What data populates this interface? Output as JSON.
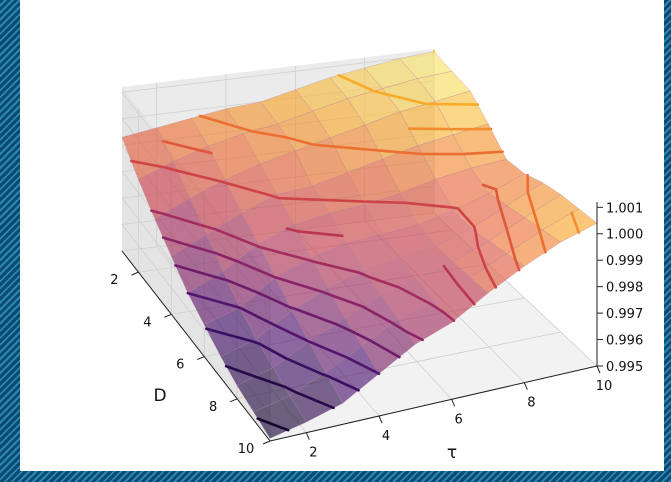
{
  "chart_data": {
    "type": "surface3d",
    "title": "",
    "xlabel": "τ",
    "ylabel": "D",
    "zlabel": "",
    "x_ticks": [
      "2",
      "4",
      "6",
      "8",
      "10"
    ],
    "y_ticks": [
      "2",
      "4",
      "6",
      "8",
      "10"
    ],
    "z_ticks": [
      "0.995",
      "0.996",
      "0.997",
      "0.998",
      "0.999",
      "1.000",
      "1.001"
    ],
    "xlim": [
      1,
      10
    ],
    "ylim": [
      1,
      10
    ],
    "zlim": [
      0.995,
      1.0012
    ],
    "colormap": "inferno",
    "grid": true,
    "tau": [
      1,
      2,
      3,
      4,
      5,
      6,
      7,
      8,
      9,
      10
    ],
    "D": [
      1,
      2,
      3,
      4,
      5,
      6,
      7,
      8,
      9,
      10
    ],
    "z": [
      [
        0.9993,
        0.9995,
        0.9997,
        0.9999,
        1.0,
        1.0003,
        1.0006,
        1.0008,
        1.001,
        1.0011
      ],
      [
        0.9985,
        0.999,
        0.9994,
        0.9997,
        0.9999,
        1.0002,
        1.0005,
        1.0007,
        1.0009,
        1.001
      ],
      [
        0.9978,
        0.9984,
        0.9989,
        0.9993,
        0.9996,
        0.9999,
        1.0002,
        1.0005,
        1.0007,
        1.0009
      ],
      [
        0.9972,
        0.9978,
        0.9984,
        0.9989,
        0.999,
        0.9993,
        0.9996,
        0.9999,
        1.0001,
        1.0003
      ],
      [
        0.9966,
        0.9972,
        0.998,
        0.9985,
        0.9987,
        0.9988,
        0.999,
        0.9993,
        0.9995,
        0.9996
      ],
      [
        0.9962,
        0.9966,
        0.9975,
        0.998,
        0.9983,
        0.9984,
        0.9985,
        0.9988,
        0.9992,
        0.9997
      ],
      [
        0.9958,
        0.9962,
        0.997,
        0.9976,
        0.998,
        0.9982,
        0.9984,
        0.9988,
        0.9994,
        1.0
      ],
      [
        0.9955,
        0.9959,
        0.9966,
        0.9972,
        0.9978,
        0.9981,
        0.9985,
        0.999,
        0.9996,
        1.0002
      ],
      [
        0.9953,
        0.9956,
        0.9962,
        0.9969,
        0.9976,
        0.998,
        0.9986,
        0.9992,
        0.9998,
        1.0003
      ],
      [
        0.9951,
        0.9954,
        0.9958,
        0.9966,
        0.9974,
        0.9979,
        0.9987,
        0.9994,
        1.0,
        1.0004
      ]
    ]
  }
}
